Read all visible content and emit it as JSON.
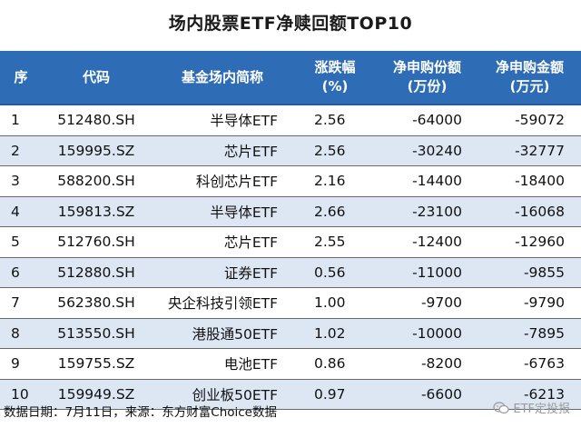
{
  "title": "场内股票ETF净赎回额TOP10",
  "headers": {
    "seq": "序",
    "code": "代码",
    "name": "基金场内简称",
    "change_l1": "涨跌幅",
    "change_l2": "(%)",
    "shares_l1": "净申购份额",
    "shares_l2": "(万份)",
    "amount_l1": "净申购金额",
    "amount_l2": "(万元)"
  },
  "rows": [
    {
      "seq": "1",
      "code": "512480.SH",
      "name": "半导体ETF",
      "change": "2.56",
      "shares": "-64000",
      "amount": "-59072"
    },
    {
      "seq": "2",
      "code": "159995.SZ",
      "name": "芯片ETF",
      "change": "2.56",
      "shares": "-30240",
      "amount": "-32777"
    },
    {
      "seq": "3",
      "code": "588200.SH",
      "name": "科创芯片ETF",
      "change": "2.16",
      "shares": "-14400",
      "amount": "-18400"
    },
    {
      "seq": "4",
      "code": "159813.SZ",
      "name": "半导体ETF",
      "change": "2.66",
      "shares": "-23100",
      "amount": "-16068"
    },
    {
      "seq": "5",
      "code": "512760.SH",
      "name": "芯片ETF",
      "change": "2.55",
      "shares": "-12400",
      "amount": "-12960"
    },
    {
      "seq": "6",
      "code": "512880.SH",
      "name": "证券ETF",
      "change": "0.56",
      "shares": "-11000",
      "amount": "-9855"
    },
    {
      "seq": "7",
      "code": "562380.SH",
      "name": "央企科技引领ETF",
      "change": "1.00",
      "shares": "-9700",
      "amount": "-9790"
    },
    {
      "seq": "8",
      "code": "513550.SH",
      "name": "港股通50ETF",
      "change": "1.02",
      "shares": "-10000",
      "amount": "-7895"
    },
    {
      "seq": "9",
      "code": "159755.SZ",
      "name": "电池ETF",
      "change": "0.86",
      "shares": "-8200",
      "amount": "-6763"
    },
    {
      "seq": "10",
      "code": "159949.SZ",
      "name": "创业板50ETF",
      "change": "0.97",
      "shares": "-6600",
      "amount": "-6213"
    }
  ],
  "footer": {
    "source": "数据日期：7月11日，来源：东方财富Choice数据",
    "brand": "ETF定投报",
    "brand_icon": "wechat-icon"
  },
  "colors": {
    "header_bg": "#2e6db5",
    "header_text": "#ffffff",
    "stripe": "#dde7f4"
  }
}
